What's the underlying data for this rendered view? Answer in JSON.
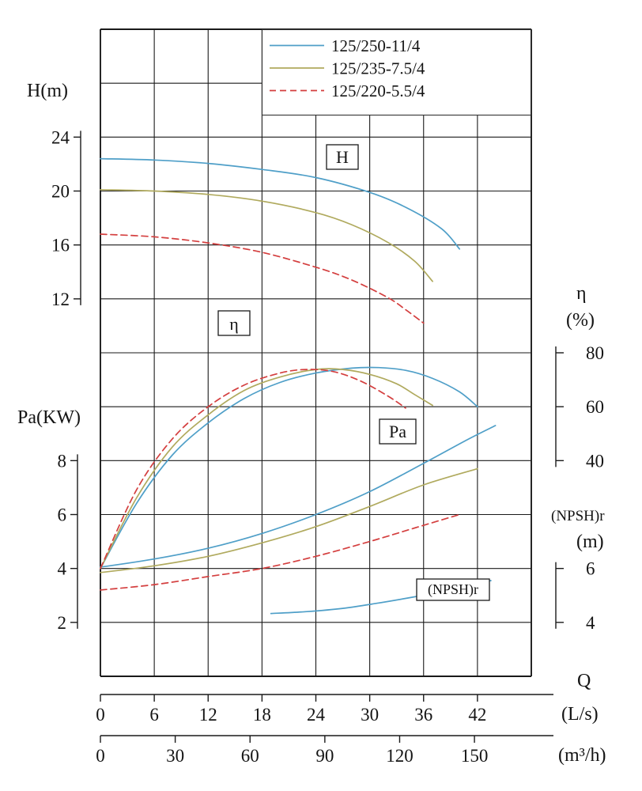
{
  "chart_data": {
    "type": "line",
    "description": "Centrifugal pump performance curves: head H, efficiency eta, shaft power Pa and (NPSH)r versus flow rate Q",
    "grid": true,
    "legend_position": "top-right",
    "axes": {
      "h": {
        "label": "H(m)",
        "ticks": [
          24,
          20,
          16,
          12
        ],
        "range": [
          12,
          24
        ]
      },
      "pa": {
        "label": "Pa(KW)",
        "ticks": [
          8,
          6,
          4,
          2
        ],
        "range": [
          2,
          8
        ]
      },
      "eta": {
        "label": "η",
        "unit": "(%)",
        "ticks": [
          80,
          60,
          40
        ],
        "range": [
          40,
          80
        ]
      },
      "npsh": {
        "label": "(NPSH)r",
        "unit": "(m)",
        "ticks": [
          6,
          4
        ],
        "range": [
          4,
          6
        ]
      },
      "q_ls": {
        "label": "Q",
        "unit": "(L/s)",
        "ticks": [
          0,
          6,
          12,
          18,
          24,
          30,
          36,
          42
        ],
        "range": [
          0,
          48
        ]
      },
      "q_m3h": {
        "unit": "(m³/h)",
        "ticks": [
          0,
          30,
          60,
          90,
          120,
          150
        ]
      }
    },
    "inplot_labels": {
      "h": "H",
      "eta": "η",
      "pa": "Pa",
      "npsh": "(NPSH)r"
    },
    "series": [
      {
        "name": "125/250-11/4",
        "color": "#4f9fc8",
        "line_style": "solid",
        "curves": {
          "H": [
            [
              0,
              22.4
            ],
            [
              6,
              22.3
            ],
            [
              12,
              22.05
            ],
            [
              18,
              21.6
            ],
            [
              24,
              21.0
            ],
            [
              30,
              19.9
            ],
            [
              34,
              18.8
            ],
            [
              38,
              17.2
            ],
            [
              40,
              15.7
            ]
          ],
          "eta": [
            [
              0,
              0
            ],
            [
              4,
              24
            ],
            [
              8,
              42
            ],
            [
              12,
              54
            ],
            [
              16,
              63
            ],
            [
              20,
              69
            ],
            [
              24,
              72.5
            ],
            [
              28,
              74.3
            ],
            [
              31,
              74.5
            ],
            [
              34,
              73.5
            ],
            [
              37,
              70.5
            ],
            [
              40,
              65.5
            ],
            [
              42,
              60
            ]
          ],
          "Pa": [
            [
              0,
              4.05
            ],
            [
              6,
              4.35
            ],
            [
              12,
              4.75
            ],
            [
              18,
              5.3
            ],
            [
              24,
              6.0
            ],
            [
              30,
              6.85
            ],
            [
              36,
              7.9
            ],
            [
              41,
              8.8
            ],
            [
              44,
              9.3
            ]
          ],
          "NPSHr": [
            [
              19,
              4.33
            ],
            [
              23,
              4.4
            ],
            [
              27,
              4.52
            ],
            [
              31,
              4.72
            ],
            [
              35,
              4.95
            ],
            [
              39,
              5.2
            ],
            [
              43.5,
              5.55
            ]
          ]
        }
      },
      {
        "name": "125/235-7.5/4",
        "color": "#b0aa5e",
        "line_style": "solid",
        "curves": {
          "H": [
            [
              0,
              20.1
            ],
            [
              6,
              20.0
            ],
            [
              12,
              19.75
            ],
            [
              18,
              19.25
            ],
            [
              24,
              18.4
            ],
            [
              28,
              17.5
            ],
            [
              32,
              16.2
            ],
            [
              35,
              14.8
            ],
            [
              37,
              13.3
            ]
          ],
          "eta": [
            [
              0,
              0
            ],
            [
              4,
              26
            ],
            [
              8,
              45
            ],
            [
              12,
              57
            ],
            [
              16,
              66
            ],
            [
              20,
              71
            ],
            [
              24,
              73.8
            ],
            [
              27,
              73.8
            ],
            [
              30,
              72
            ],
            [
              33,
              68.5
            ],
            [
              35,
              64.5
            ],
            [
              37,
              60.5
            ]
          ],
          "Pa": [
            [
              0,
              3.85
            ],
            [
              6,
              4.1
            ],
            [
              12,
              4.45
            ],
            [
              18,
              4.95
            ],
            [
              24,
              5.55
            ],
            [
              30,
              6.3
            ],
            [
              36,
              7.1
            ],
            [
              42,
              7.7
            ]
          ]
        }
      },
      {
        "name": "125/220-5.5/4",
        "color": "#d43f3f",
        "line_style": "dashed",
        "curves": {
          "H": [
            [
              0,
              16.8
            ],
            [
              6,
              16.6
            ],
            [
              12,
              16.15
            ],
            [
              18,
              15.45
            ],
            [
              24,
              14.35
            ],
            [
              28,
              13.4
            ],
            [
              32,
              12.1
            ],
            [
              34,
              11.2
            ],
            [
              36,
              10.2
            ]
          ],
          "eta": [
            [
              0,
              0
            ],
            [
              4,
              29
            ],
            [
              8,
              48
            ],
            [
              12,
              60
            ],
            [
              16,
              68
            ],
            [
              20,
              72.5
            ],
            [
              23,
              73.8
            ],
            [
              26,
              73
            ],
            [
              29,
              69.5
            ],
            [
              32,
              64
            ],
            [
              34,
              59.5
            ]
          ],
          "Pa": [
            [
              0,
              3.2
            ],
            [
              6,
              3.4
            ],
            [
              12,
              3.7
            ],
            [
              18,
              4.0
            ],
            [
              24,
              4.45
            ],
            [
              30,
              5.0
            ],
            [
              35,
              5.5
            ],
            [
              40,
              6.0
            ]
          ]
        }
      }
    ]
  }
}
